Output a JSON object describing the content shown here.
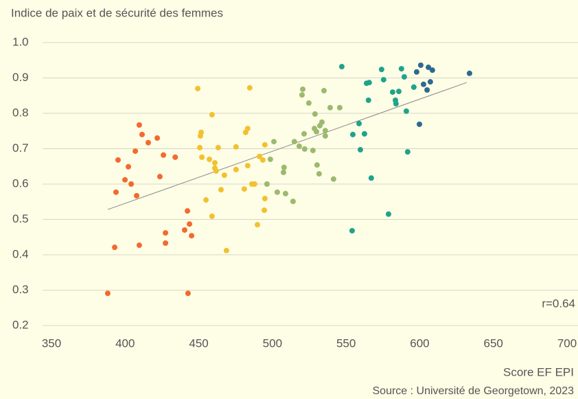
{
  "chart_data": {
    "type": "scatter",
    "title": "Indice de paix et de sécurité des femmes",
    "x_label": "Score EF EPI",
    "source": "Source : Université de Georgetown, 2023",
    "annotation": "r=0.64",
    "xlim": [
      350,
      700
    ],
    "ylim": [
      0.2,
      1.0
    ],
    "xticks": [
      350,
      400,
      450,
      500,
      550,
      600,
      650,
      700
    ],
    "yticks": [
      0.2,
      0.3,
      0.4,
      0.5,
      0.6,
      0.7,
      0.8,
      0.9,
      {
        "value": 1,
        "label": "1.0"
      }
    ],
    "grid": true,
    "trendline": {
      "color": "#888888",
      "x": [
        388.2,
        631.9
      ],
      "y": [
        0.528,
        0.887
      ]
    },
    "series": [
      {
        "color": "#f26a2e",
        "x": [
          388.2,
          392.9,
          393.8,
          395.2,
          399.9,
          402.2,
          404.1,
          406.9,
          407.8,
          409.6,
          409.6,
          411.5,
          415.7,
          421.8,
          423.6,
          426.0,
          427.4,
          427.4,
          434.0,
          440.4,
          442.3,
          442.7,
          443.7,
          445.1
        ],
        "values": [
          0.291,
          0.421,
          0.577,
          0.668,
          0.612,
          0.649,
          0.6,
          0.693,
          0.567,
          0.767,
          0.427,
          0.74,
          0.717,
          0.73,
          0.621,
          0.682,
          0.462,
          0.433,
          0.676,
          0.47,
          0.524,
          0.291,
          0.487,
          0.454
        ]
      },
      {
        "color": "#f2c12e",
        "x": [
          449.3,
          450.7,
          451.6,
          451.1,
          452.1,
          454.9,
          457.2,
          459.0,
          459.0,
          460.9,
          460.9,
          461.8,
          463.2,
          465.1,
          467.4,
          468.8,
          475.3,
          475.3,
          480.9,
          481.8,
          483.2,
          483.2,
          484.6,
          486.1,
          487.9,
          489.8,
          491.2,
          493.5,
          494.9,
          494.9,
          494.5
        ],
        "values": [
          0.87,
          0.703,
          0.746,
          0.736,
          0.676,
          0.555,
          0.67,
          0.796,
          0.509,
          0.66,
          0.645,
          0.637,
          0.703,
          0.584,
          0.625,
          0.412,
          0.705,
          0.641,
          0.586,
          0.746,
          0.757,
          0.652,
          0.872,
          0.6,
          0.6,
          0.485,
          0.678,
          0.668,
          0.711,
          0.559,
          0.526
        ]
      },
      {
        "color": "#9bba6e",
        "x": [
          496.3,
          498.6,
          501.0,
          503.3,
          507.9,
          507.5,
          508.9,
          514.0,
          514.9,
          518.2,
          520.6,
          520.1,
          521.5,
          521.9,
          524.7,
          527.5,
          528.9,
          528.5,
          529.9,
          530.3,
          531.7,
          532.2,
          533.6,
          535.0,
          535.9,
          535.9,
          539.2,
          541.5,
          545.7
        ],
        "values": [
          0.6,
          0.67,
          0.72,
          0.577,
          0.647,
          0.633,
          0.573,
          0.551,
          0.72,
          0.707,
          0.868,
          0.852,
          0.742,
          0.699,
          0.829,
          0.695,
          0.798,
          0.757,
          0.748,
          0.654,
          0.629,
          0.765,
          0.775,
          0.864,
          0.751,
          0.736,
          0.816,
          0.614,
          0.816
        ]
      },
      {
        "color": "#1fa38c",
        "x": [
          547.1,
          554.1,
          554.6,
          558.8,
          559.7,
          562.5,
          563.9,
          565.7,
          565.2,
          567.1,
          574.1,
          575.5,
          578.8,
          581.6,
          583.5,
          583.9,
          585.8,
          587.6,
          589.5,
          590.9,
          591.8,
          596.0
        ],
        "values": [
          0.932,
          0.468,
          0.74,
          0.771,
          0.697,
          0.742,
          0.885,
          0.887,
          0.837,
          0.617,
          0.924,
          0.895,
          0.515,
          0.86,
          0.837,
          0.827,
          0.862,
          0.926,
          0.903,
          0.806,
          0.691,
          0.874
        ]
      },
      {
        "color": "#2e6a8f",
        "x": [
          597.9,
          600.7,
          599.8,
          602.6,
          605.0,
          605.9,
          607.2,
          608.6,
          633.8
        ],
        "values": [
          0.917,
          0.936,
          0.769,
          0.882,
          0.866,
          0.93,
          0.889,
          0.922,
          0.913
        ]
      }
    ]
  }
}
